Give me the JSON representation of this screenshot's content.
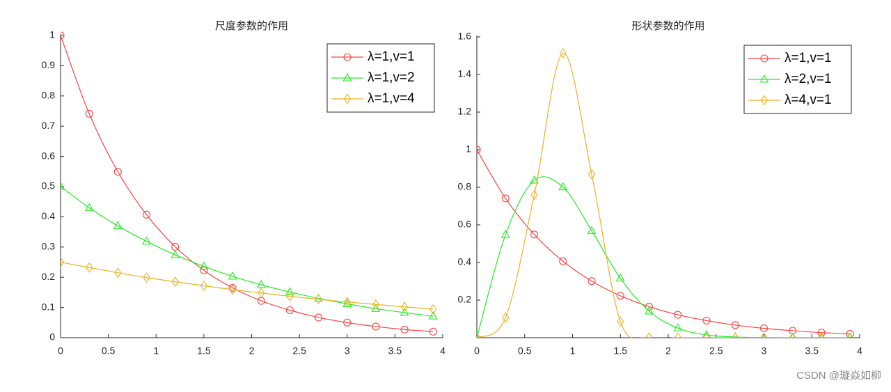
{
  "chart_data": [
    {
      "type": "line",
      "title": "尺度参数的作用",
      "x": [
        0,
        0.3,
        0.6,
        0.9,
        1.2,
        1.5,
        1.8,
        2.1,
        2.4,
        2.7,
        3.0,
        3.3,
        3.6,
        3.9
      ],
      "series": [
        {
          "name": "λ=1,v=1",
          "color": "#ff4040",
          "marker": "circle",
          "values": [
            1,
            0.741,
            0.549,
            0.407,
            0.301,
            0.223,
            0.165,
            0.122,
            0.091,
            0.067,
            0.05,
            0.037,
            0.027,
            0.02
          ]
        },
        {
          "name": "λ=1,v=2",
          "color": "#22ee22",
          "marker": "triangle",
          "values": [
            0.5,
            0.43,
            0.37,
            0.319,
            0.274,
            0.236,
            0.203,
            0.175,
            0.151,
            0.13,
            0.112,
            0.096,
            0.083,
            0.071
          ]
        },
        {
          "name": "λ=1,v=4",
          "color": "#edb120",
          "marker": "diamond",
          "values": [
            0.25,
            0.232,
            0.215,
            0.199,
            0.185,
            0.172,
            0.159,
            0.148,
            0.137,
            0.127,
            0.118,
            0.11,
            0.102,
            0.094
          ]
        }
      ],
      "xlim": [
        0,
        4
      ],
      "xticks": [
        0,
        0.5,
        1,
        1.5,
        2,
        2.5,
        3,
        3.5,
        4
      ],
      "ylim": [
        0,
        1
      ],
      "yticks": [
        0,
        0.1,
        0.2,
        0.3,
        0.4,
        0.5,
        0.6,
        0.7,
        0.8,
        0.9,
        1
      ],
      "legend": "upper right"
    },
    {
      "type": "line",
      "title": "形状参数的作用",
      "x": [
        0,
        0.3,
        0.6,
        0.9,
        1.2,
        1.5,
        1.8,
        2.1,
        2.4,
        2.7,
        3.0,
        3.3,
        3.6,
        3.9
      ],
      "series": [
        {
          "name": "λ=1,v=1",
          "color": "#ff4040",
          "marker": "circle",
          "values": [
            1,
            0.741,
            0.549,
            0.407,
            0.301,
            0.223,
            0.165,
            0.122,
            0.091,
            0.067,
            0.05,
            0.037,
            0.027,
            0.02
          ]
        },
        {
          "name": "λ=2,v=1",
          "color": "#22ee22",
          "marker": "triangle",
          "values": [
            0,
            0.548,
            0.837,
            0.801,
            0.569,
            0.316,
            0.141,
            0.051,
            0.015,
            0.004,
            0.001,
            0,
            0,
            0
          ]
        },
        {
          "name": "λ=4,v=1",
          "color": "#edb120",
          "marker": "diamond",
          "values": [
            0,
            0.107,
            0.759,
            1.513,
            0.869,
            0.086,
            0.001,
            0,
            0,
            0,
            0,
            0,
            0,
            0
          ]
        }
      ],
      "xlim": [
        0,
        4
      ],
      "xticks": [
        0,
        0.5,
        1,
        1.5,
        2,
        2.5,
        3,
        3.5,
        4
      ],
      "ylim": [
        0,
        1.6
      ],
      "yticks": [
        0.2,
        0.4,
        0.6,
        0.8,
        1,
        1.2,
        1.4,
        1.6
      ],
      "legend": "upper right"
    }
  ],
  "watermark": "CSDN @璇焱如柳"
}
